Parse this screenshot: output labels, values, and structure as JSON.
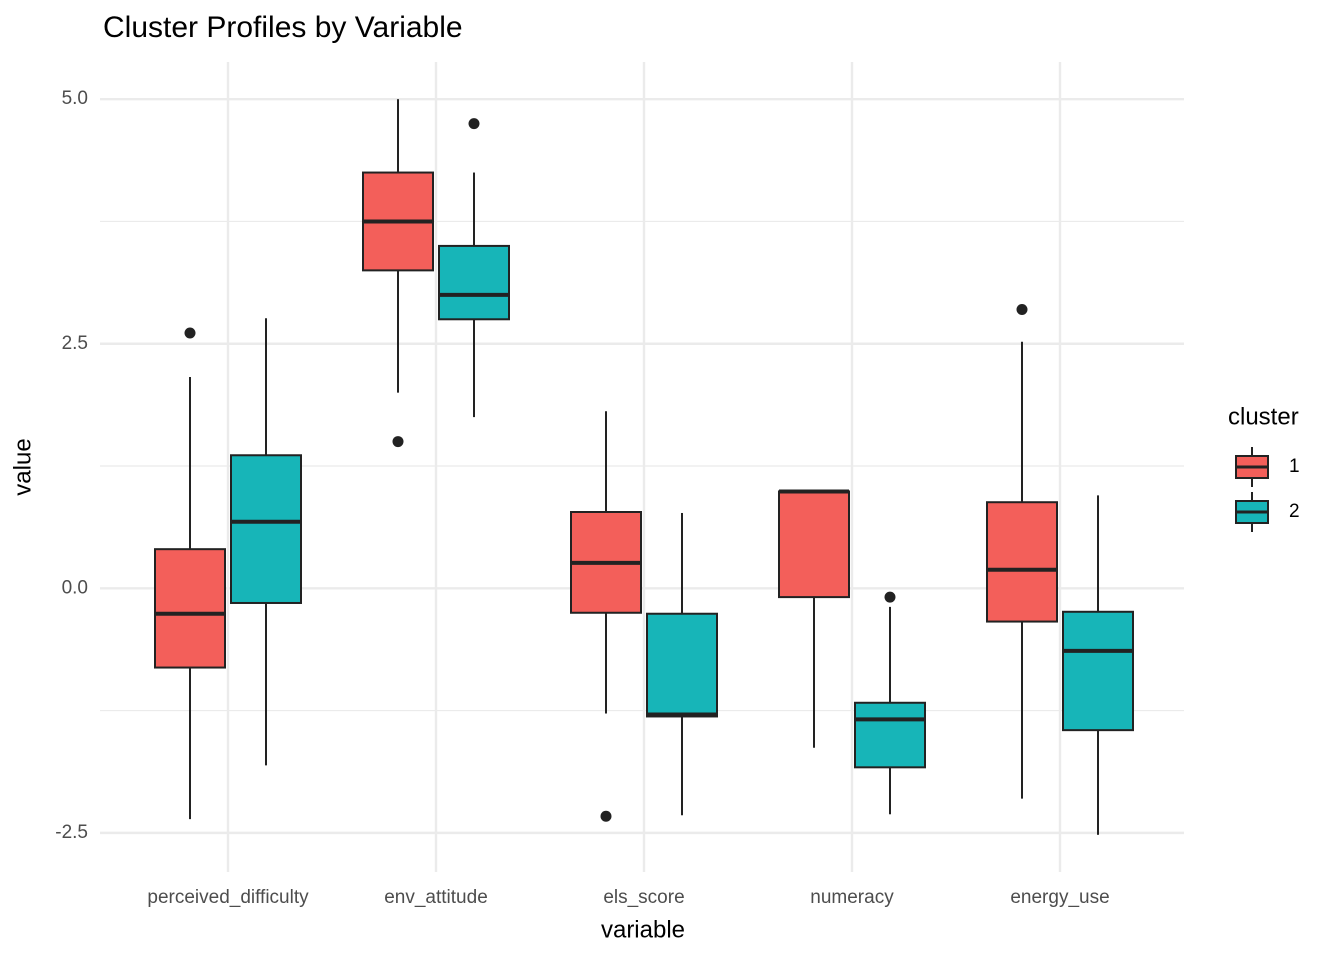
{
  "chart_data": {
    "type": "boxplot",
    "title": "Cluster Profiles by Variable",
    "x_label": "variable",
    "y_label": "value",
    "categories": [
      "perceived_difficulty",
      "env_attitude",
      "els_score",
      "numeracy",
      "energy_use"
    ],
    "legend_title": "cluster",
    "legend_position": "right",
    "ylim": [
      -2.9,
      5.38
    ],
    "yticks": [
      {
        "value": -2.5,
        "label": "-2.5"
      },
      {
        "value": 0,
        "label": "0.0"
      },
      {
        "value": 2.5,
        "label": "2.5"
      },
      {
        "value": 5,
        "label": "5.0"
      }
    ],
    "grid": true,
    "series": [
      {
        "name": "1",
        "color": "#f35f5a",
        "boxes": [
          {
            "min": -2.36,
            "q1": -0.81,
            "median": -0.26,
            "q3": 0.4,
            "max": 2.16,
            "outliers": [
              2.61
            ]
          },
          {
            "min": 2.0,
            "q1": 3.25,
            "median": 3.75,
            "q3": 4.25,
            "max": 5.0,
            "outliers": [
              1.5
            ]
          },
          {
            "min": -1.28,
            "q1": -0.25,
            "median": 0.26,
            "q3": 0.78,
            "max": 1.81,
            "outliers": [
              -2.33
            ]
          },
          {
            "min": -1.63,
            "q1": -0.09,
            "median": 0.99,
            "q3": 0.99,
            "max": 0.99,
            "outliers": []
          },
          {
            "min": -2.15,
            "q1": -0.34,
            "median": 0.19,
            "q3": 0.88,
            "max": 2.52,
            "outliers": [
              2.85
            ]
          }
        ]
      },
      {
        "name": "2",
        "color": "#17b5b8",
        "boxes": [
          {
            "min": -1.81,
            "q1": -0.15,
            "median": 0.68,
            "q3": 1.36,
            "max": 2.76,
            "outliers": []
          },
          {
            "min": 1.75,
            "q1": 2.75,
            "median": 3.0,
            "q3": 3.5,
            "max": 4.25,
            "outliers": [
              4.75
            ]
          },
          {
            "min": -2.32,
            "q1": -1.31,
            "median": -1.29,
            "q3": -0.26,
            "max": 0.77,
            "outliers": []
          },
          {
            "min": -2.31,
            "q1": -1.83,
            "median": -1.34,
            "q3": -1.17,
            "max": -0.19,
            "outliers": [
              -0.09
            ]
          },
          {
            "min": -2.52,
            "q1": -1.45,
            "median": -0.64,
            "q3": -0.24,
            "max": 0.95,
            "outliers": []
          }
        ]
      }
    ]
  }
}
